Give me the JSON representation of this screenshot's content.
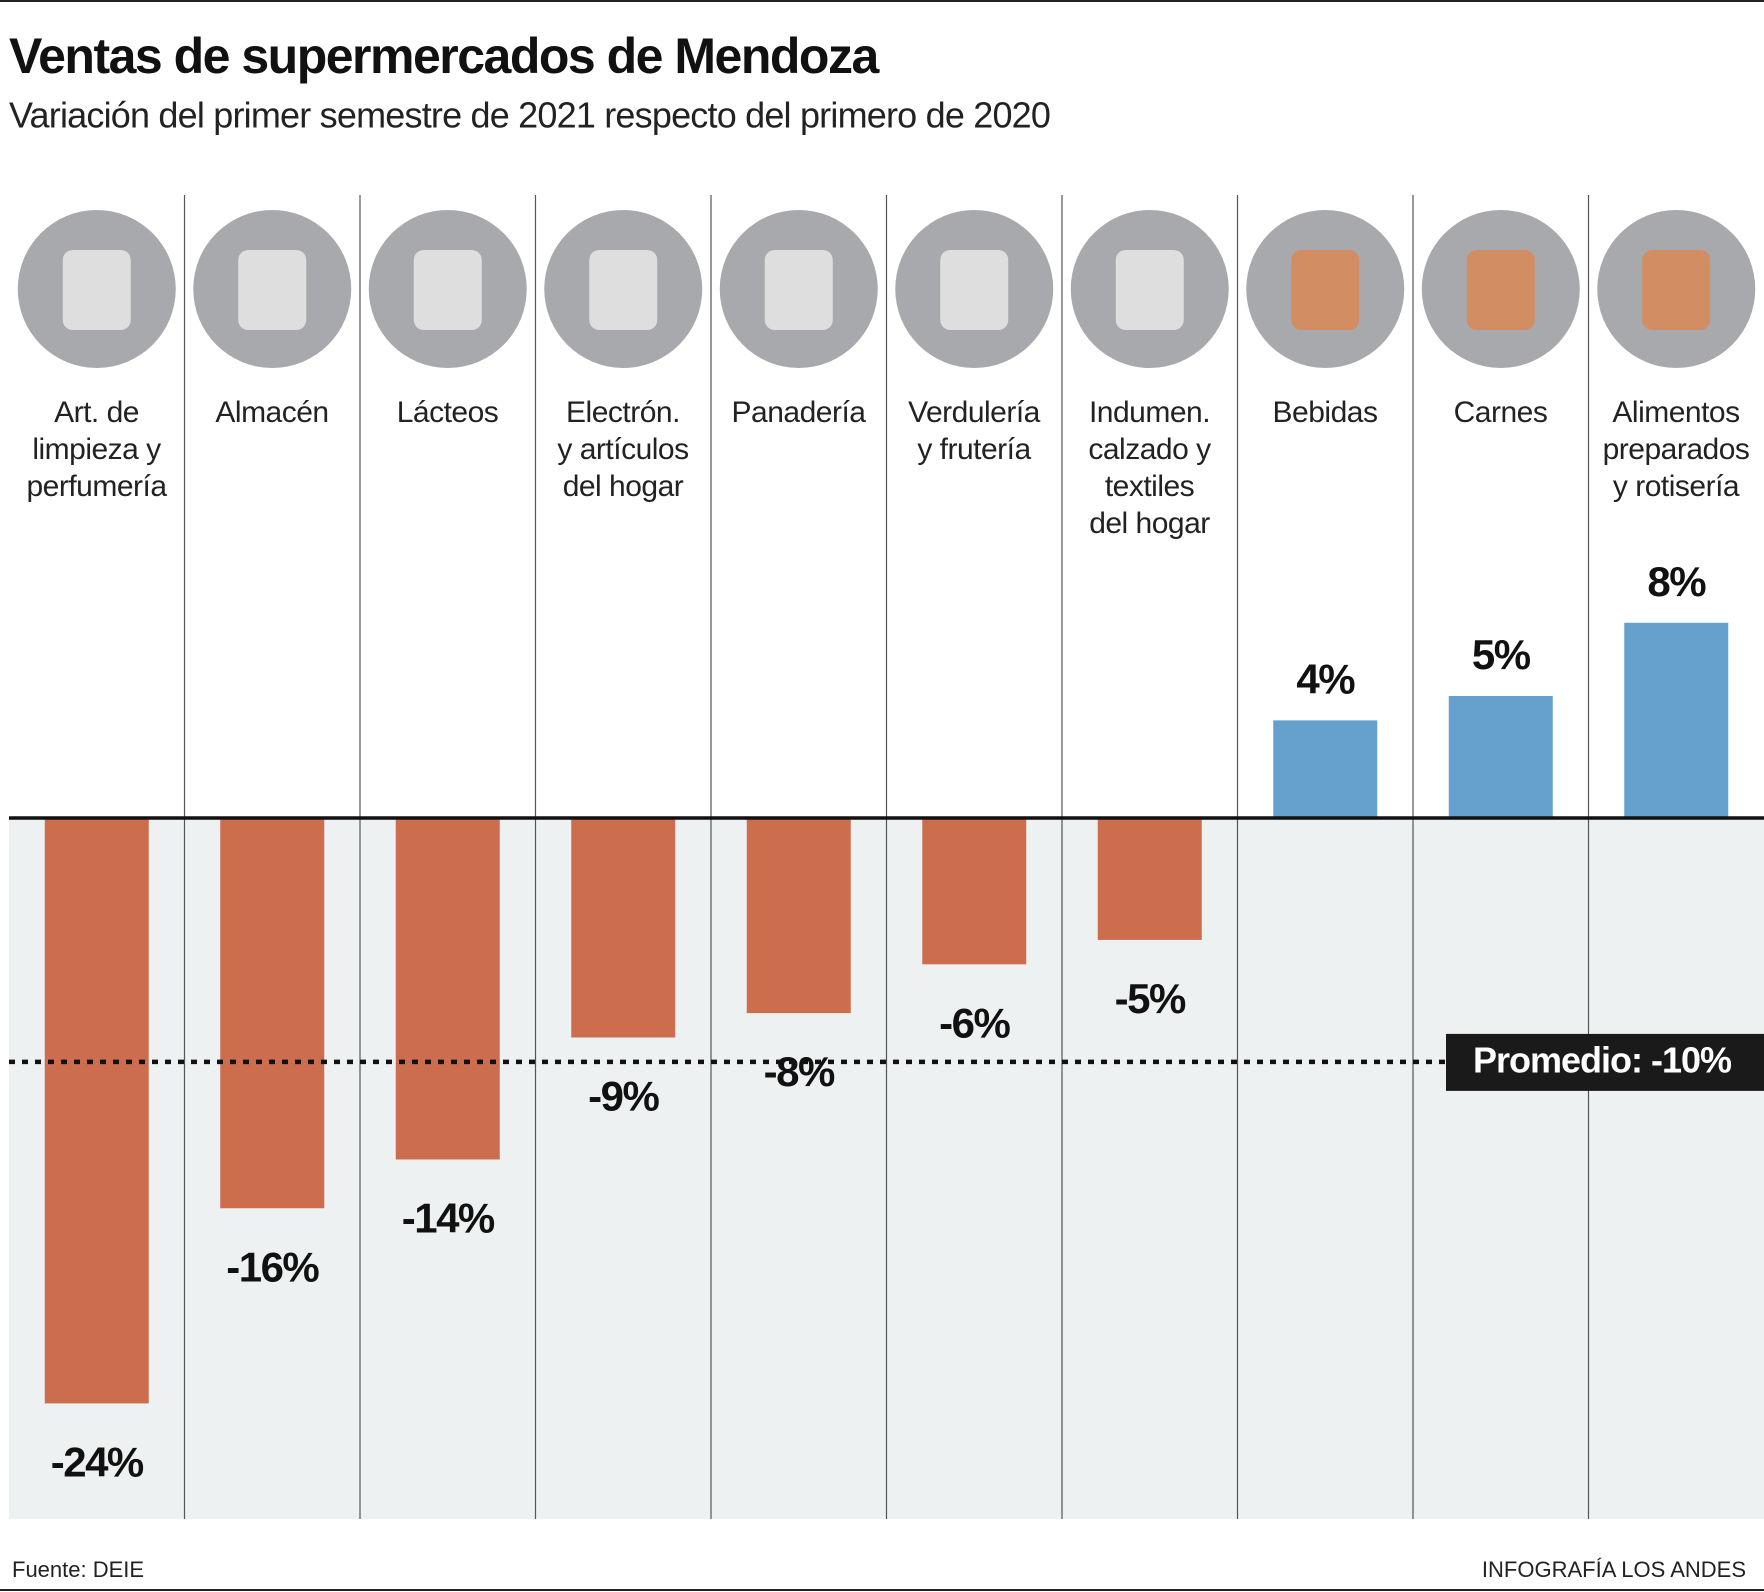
{
  "chart_data": {
    "type": "bar",
    "title": "Ventas de supermercados de Mendoza",
    "subtitle": "Variación del primer semestre de 2021 respecto del primero de 2020",
    "categories": [
      "Art. de\nlimpieza y\nperfumería",
      "Almacén",
      "Lácteos",
      "Electrón.\ny artículos\ndel hogar",
      "Panadería",
      "Verdulería\ny frutería",
      "Indumen.\ncalzado y\ntextiles\ndel hogar",
      "Bebidas",
      "Carnes",
      "Alimentos\npreparados\ny rotisería"
    ],
    "values": [
      -24,
      -16,
      -14,
      -9,
      -8,
      -6,
      -5,
      4,
      5,
      8
    ],
    "value_labels": [
      "-24%",
      "-16%",
      "-14%",
      "-9%",
      "-8%",
      "-6%",
      "-5%",
      "4%",
      "5%",
      "8%"
    ],
    "color_negative": "#cc6e4e",
    "color_positive": "#66a0cc",
    "ylim": [
      -28,
      10
    ],
    "average": {
      "value": -10,
      "label": "Promedio: -10%"
    },
    "source": "Fuente: DEIE",
    "credit": "INFOGRAFÍA LOS ANDES"
  }
}
